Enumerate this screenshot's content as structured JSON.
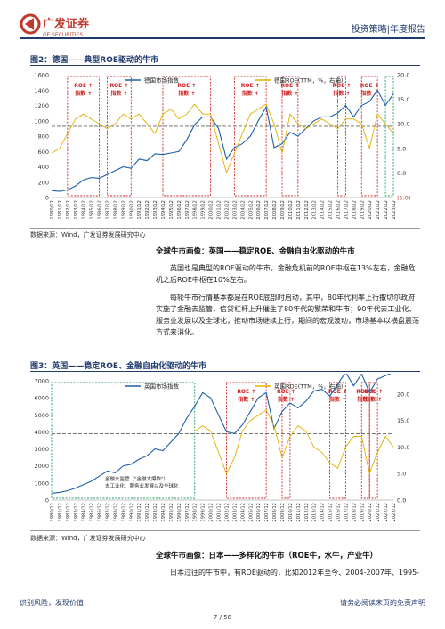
{
  "header": {
    "logo_cn": "广发证券",
    "logo_en": "GF SECURITIES",
    "right_label": "投资策略|年度报告"
  },
  "figure2": {
    "title": "图2：德国——典型ROE驱动的牛市",
    "legend_index": "德国市场指数",
    "legend_roe": "德国ROE(TTM，%，右轴)",
    "roe_box_label": "ROE ↑\n指数 ↑",
    "neg_label": "(5.0)",
    "source": "数据来源：Wind，广发证券发展研究中心"
  },
  "section1": {
    "heading": "全球牛市画像：英国——稳定ROE、金融自由化驱动的牛市",
    "para1": "英国也是典型的ROE驱动的牛市，金融危机前的ROE中枢在13%左右，金融危机之后ROE中枢在10%左右。",
    "para2": "每轮牛市行情基本都是在ROE底部时启动，其中，80年代利率上行撒切尔政府实施了金融去监管，信贷杠杆上升催生了80年代的繁荣和牛市；90年代去工业化、服务业发展以及全球化，推动市场继续上行，期间的宏观波动，市场基本以横盘震荡方式来消化。"
  },
  "figure3": {
    "title": "图3：英国——稳定ROE、金融自由化驱动的牛市",
    "legend_index": "英国市场指数",
    "legend_roe": "英国ROE(TTM，%，右轴)",
    "roe_box_label": "ROE ↑\n指数 ↑",
    "annotation": "金融去监管（\"金融大爆炸\"）\n去工业化、服务业发展以及全球化",
    "source": "数据来源：Wind，广发证券发展研究中心"
  },
  "section2": {
    "heading": "全球牛市画像：日本——多样化的牛市（ROE牛，水牛，产业牛）",
    "para1": "日本过往的牛市中，有ROE驱动的，比如2012年至今、2004-2007年、1995-"
  },
  "footer": {
    "left": "识别风险，发现价值",
    "right": "请务必阅读末页的免责声明",
    "page": "7 / 58"
  },
  "chart_data": [
    {
      "type": "line",
      "title": "图2：德国——典型ROE驱动的牛市",
      "x_ticks": [
        "1980/12",
        "1981/12",
        "1982/12",
        "1983/12",
        "1984/12",
        "1985/12",
        "1986/12",
        "1987/12",
        "1988/12",
        "1989/12",
        "1990/12",
        "1991/12",
        "1992/12",
        "1993/12",
        "1994/12",
        "1995/12",
        "1996/12",
        "1997/12",
        "1998/12",
        "1999/12",
        "2000/12",
        "2001/12",
        "2002/12",
        "2003/12",
        "2004/12",
        "2005/12",
        "2006/12",
        "2007/12",
        "2008/12",
        "2009/12",
        "2010/12",
        "2011/12",
        "2012/12",
        "2013/12",
        "2014/12",
        "2015/12",
        "2016/12",
        "2017/12",
        "2018/12",
        "2019/12",
        "2020/12",
        "2021/12",
        "2022/12",
        "2023/12"
      ],
      "y_left_ticks": [
        "0",
        "200",
        "400",
        "600",
        "800",
        "1000",
        "1200",
        "1400",
        "1600"
      ],
      "y_left_range": [
        0,
        1600
      ],
      "y_right_ticks": [
        "(5.0)",
        "0.0",
        "5.0",
        "10.0",
        "15.0",
        "20.0"
      ],
      "y_right_range": [
        -5,
        20
      ],
      "series": [
        {
          "name": "德国市场指数",
          "color": "#1f5fa8",
          "axis": "left",
          "values": [
            90,
            80,
            100,
            150,
            230,
            260,
            250,
            300,
            350,
            400,
            380,
            500,
            480,
            570,
            560,
            580,
            600,
            750,
            950,
            1050,
            1050,
            900,
            500,
            650,
            700,
            800,
            1000,
            1180,
            650,
            700,
            850,
            800,
            900,
            1000,
            1050,
            1050,
            1100,
            1200,
            1050,
            1200,
            1250,
            1400,
            1200,
            1350
          ]
        },
        {
          "name": "德国ROE(TTM，%，右轴)",
          "color": "#e0b000",
          "axis": "right",
          "values": [
            4,
            5,
            8,
            11,
            12,
            11,
            10,
            9,
            10,
            12,
            11,
            12,
            10,
            8,
            12,
            13,
            11,
            12,
            14,
            12,
            12,
            6,
            0,
            4,
            8,
            12,
            13,
            14,
            10,
            4,
            12,
            10,
            9,
            10,
            11,
            10,
            9,
            11,
            11,
            10,
            5,
            12,
            10,
            8
          ]
        }
      ],
      "reference_line": 9.5,
      "highlight_ranges": [
        [
          "1982/12",
          "1986/12"
        ],
        [
          "1987/12",
          "1990/12"
        ],
        [
          "1994/12",
          "2000/12"
        ],
        [
          "2003/12",
          "2007/12"
        ],
        [
          "2009/12",
          "2011/12"
        ],
        [
          "2016/12",
          "2017/12"
        ],
        [
          "2019/12",
          "2021/12"
        ],
        [
          "2022/12",
          "2023/12"
        ]
      ]
    },
    {
      "type": "line",
      "title": "图3：英国——稳定ROE、金融自由化驱动的牛市",
      "x_ticks": [
        "1980/12",
        "1981/12",
        "1982/12",
        "1983/12",
        "1984/12",
        "1985/12",
        "1986/12",
        "1987/12",
        "1988/12",
        "1989/12",
        "1990/12",
        "1991/12",
        "1992/12",
        "1993/12",
        "1994/12",
        "1995/12",
        "1996/12",
        "1997/12",
        "1998/12",
        "1999/12",
        "2000/12",
        "2001/12",
        "2002/12",
        "2003/12",
        "2004/12",
        "2005/12",
        "2006/12",
        "2007/12",
        "2008/12",
        "2009/12",
        "2010/12",
        "2011/12",
        "2012/12",
        "2013/12",
        "2014/12",
        "2015/12",
        "2016/12",
        "2017/12",
        "2018/12",
        "2019/12",
        "2020/12",
        "2021/12",
        "2022/12",
        "2023/12"
      ],
      "y_left_ticks": [
        "0",
        "1000",
        "2000",
        "3000",
        "4000",
        "5000",
        "6000",
        "7000"
      ],
      "y_left_range": [
        0,
        7000
      ],
      "y_right_ticks": [
        "0.0",
        "5.0",
        "10.0",
        "15.0",
        "20.0"
      ],
      "y_right_range": [
        0,
        22.5
      ],
      "series": [
        {
          "name": "英国市场指数",
          "color": "#1f5fa8",
          "axis": "left",
          "values": [
            400,
            450,
            550,
            700,
            900,
            1100,
            1400,
            1700,
            1600,
            2000,
            2100,
            2400,
            2600,
            3000,
            2900,
            3400,
            3900,
            4800,
            5500,
            6300,
            6000,
            5000,
            4000,
            3900,
            4400,
            5200,
            6000,
            6300,
            4200,
            5200,
            5700,
            5400,
            5800,
            6400,
            6500,
            6100,
            6800,
            7500,
            6700,
            7400,
            6300,
            7100,
            7300,
            7500
          ]
        },
        {
          "name": "英国ROE(TTM，%，右轴)",
          "color": "#e0b000",
          "axis": "right",
          "values": [
            13,
            13,
            13,
            13,
            13,
            13,
            13,
            13,
            13,
            13,
            13,
            13,
            13,
            13,
            13,
            13,
            13,
            13,
            13,
            14,
            13,
            9,
            5,
            8,
            13,
            15,
            16,
            17,
            14,
            8,
            12,
            14,
            13,
            10,
            9,
            7,
            6,
            10,
            12,
            12,
            5,
            9,
            12,
            10
          ]
        }
      ],
      "reference_line": 12.5,
      "highlight_ranges": [
        [
          "1980/12",
          "1998/12"
        ],
        [
          "2002/12",
          "2007/12"
        ],
        [
          "2009/12",
          "2010/12"
        ],
        [
          "2015/12",
          "2017/12"
        ],
        [
          "2019/12",
          "2020/12"
        ],
        [
          "2020/12",
          "2021/12"
        ]
      ]
    }
  ]
}
